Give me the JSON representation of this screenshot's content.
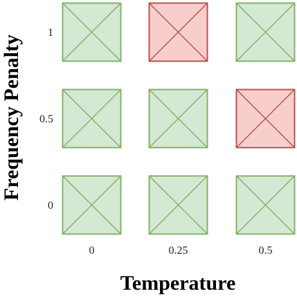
{
  "chart_data": {
    "type": "heatmap",
    "title": "",
    "xlabel": "Temperature",
    "ylabel": "Frequency Penalty",
    "x_categories": [
      "0",
      "0.25",
      "0.5"
    ],
    "y_categories": [
      "0",
      "0.5",
      "1"
    ],
    "cells": [
      {
        "x": "0",
        "y": "1",
        "status": "pass"
      },
      {
        "x": "0.25",
        "y": "1",
        "status": "fail"
      },
      {
        "x": "0.5",
        "y": "1",
        "status": "pass"
      },
      {
        "x": "0",
        "y": "0.5",
        "status": "pass"
      },
      {
        "x": "0.25",
        "y": "0.5",
        "status": "pass"
      },
      {
        "x": "0.5",
        "y": "0.5",
        "status": "fail"
      },
      {
        "x": "0",
        "y": "0",
        "status": "pass"
      },
      {
        "x": "0.25",
        "y": "0",
        "status": "pass"
      },
      {
        "x": "0.5",
        "y": "0",
        "status": "pass"
      }
    ],
    "colors": {
      "pass": {
        "fill": "#d5e8d4",
        "stroke": "#82b366"
      },
      "fail": {
        "fill": "#f8cecc",
        "stroke": "#b85450"
      }
    },
    "grid": false,
    "legend": "none"
  }
}
